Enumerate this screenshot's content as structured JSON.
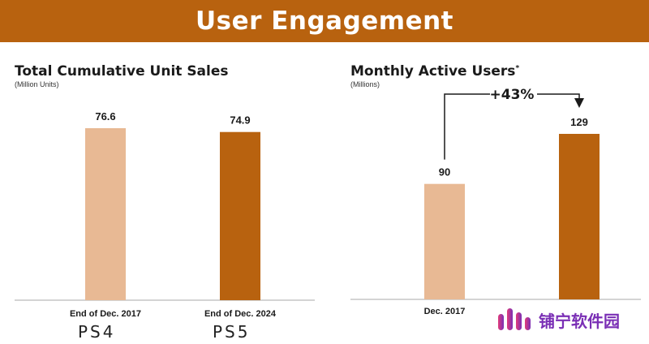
{
  "banner": {
    "title": "User Engagement"
  },
  "colors": {
    "banner": "#b8620f",
    "bar_light": "#e8b994",
    "bar_dark": "#b8620f",
    "axis": "#aaaaaa"
  },
  "chart_data": [
    {
      "type": "bar",
      "title": "Total Cumulative Unit Sales",
      "subtitle": "(Million Units)",
      "categories": [
        "End of Dec. 2017",
        "End of Dec. 2024"
      ],
      "values": [
        76.6,
        74.9
      ],
      "value_labels": [
        "76.6",
        "74.9"
      ],
      "console_labels": [
        "PS4",
        "PS5"
      ],
      "grid": false
    },
    {
      "type": "bar",
      "title": "Monthly Active Users",
      "title_marker": "*",
      "subtitle": "(Millions)",
      "categories": [
        "Dec. 2017",
        ""
      ],
      "values": [
        90,
        129
      ],
      "value_labels": [
        "90",
        "129"
      ],
      "annotation": "+43%",
      "grid": false
    }
  ],
  "watermark": {
    "text": "铺宁软件园"
  }
}
